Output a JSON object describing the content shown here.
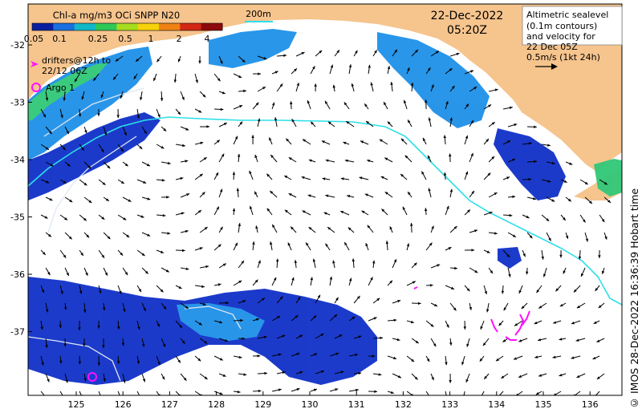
{
  "colorbar": {
    "title": "Chl-a mg/m3 OCi SNPP N20",
    "tick_labels": [
      "0.05",
      "0.1",
      "0.25",
      "0.5",
      "1",
      "2",
      "4"
    ],
    "colors": [
      "#0a1fa0",
      "#1a6fe0",
      "#12b7c8",
      "#2ec858",
      "#a6dc1e",
      "#f5d20a",
      "#f08214",
      "#d22814",
      "#8c0a0a"
    ]
  },
  "contour_legend": {
    "label": "200m",
    "color": "#2de0e8"
  },
  "legend": {
    "drifters": "drifters@12h to",
    "drifters_sub": "22/12 06Z",
    "argo": "Argo 1",
    "drifter_color": "#ff10ff"
  },
  "timestamp": {
    "date": "22-Dec-2022",
    "time": "05:20Z"
  },
  "sealevel_box": {
    "lines": [
      "Altimetric sealevel",
      "(0.1m contours)",
      "and velocity for",
      "22 Dec 05Z",
      "0.5m/s (1kt 24h)"
    ]
  },
  "axes": {
    "x_ticks": [
      "125",
      "126",
      "127",
      "128",
      "129",
      "130",
      "131",
      "132",
      "133",
      "134",
      "135",
      "136"
    ],
    "y_ticks": [
      "-32",
      "-33",
      "-34",
      "-35",
      "-36",
      "-37"
    ]
  },
  "credit": "© IMOS 28-Dec-2022 16:36:39 Hobart time",
  "colors": {
    "land": "#f6c48d",
    "chl_low": "#1030c8",
    "chl_mid": "#1e90e8",
    "chl_high": "#30c878",
    "contour": "#2de0e8"
  }
}
